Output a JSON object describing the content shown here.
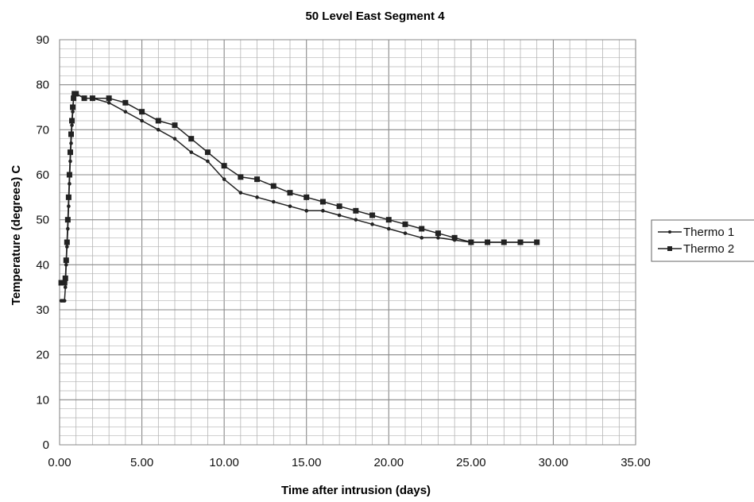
{
  "chart_data": {
    "type": "line",
    "title": "50 Level East Segment 4",
    "xlabel": "Time after intrusion (days)",
    "ylabel": "Temperature (degrees) C",
    "xlim": [
      0,
      35
    ],
    "ylim": [
      0,
      90
    ],
    "x_ticks": [
      "0.00",
      "5.00",
      "10.00",
      "15.00",
      "20.00",
      "25.00",
      "30.00",
      "35.00"
    ],
    "y_ticks": [
      "0",
      "10",
      "20",
      "30",
      "40",
      "50",
      "60",
      "70",
      "80",
      "90"
    ],
    "grid": true,
    "legend_position": "right",
    "series": [
      {
        "name": "Thermo 1",
        "marker": "small-dot",
        "color": "#222222",
        "x": [
          0.1,
          0.2,
          0.3,
          0.35,
          0.4,
          0.45,
          0.5,
          0.55,
          0.6,
          0.65,
          0.7,
          0.75,
          0.8,
          0.85,
          0.9,
          1.0,
          1.5,
          2.0,
          3.0,
          4.0,
          5.0,
          6.0,
          7.0,
          8.0,
          9.0,
          10.0,
          11.0,
          12.0,
          13.0,
          14.0,
          15.0,
          16.0,
          17.0,
          18.0,
          19.0,
          20.0,
          21.0,
          22.0,
          23.0,
          24.0,
          25.0,
          26.0,
          27.0,
          28.0,
          29.0
        ],
        "values": [
          32,
          32,
          32,
          35,
          40,
          44,
          48,
          53,
          58,
          63,
          67,
          71,
          74,
          77,
          78,
          78,
          77,
          77,
          76,
          74,
          72,
          70,
          68,
          65,
          63,
          59,
          56,
          55,
          54,
          53,
          52,
          52,
          51,
          50,
          49,
          48,
          47,
          46,
          46,
          45.5,
          45,
          45,
          45,
          45,
          45
        ]
      },
      {
        "name": "Thermo 2",
        "marker": "square",
        "color": "#222222",
        "x": [
          0.1,
          0.2,
          0.3,
          0.35,
          0.4,
          0.45,
          0.5,
          0.55,
          0.6,
          0.65,
          0.7,
          0.75,
          0.8,
          0.85,
          0.9,
          1.0,
          1.5,
          2.0,
          3.0,
          4.0,
          5.0,
          6.0,
          7.0,
          8.0,
          9.0,
          10.0,
          11.0,
          12.0,
          13.0,
          14.0,
          15.0,
          16.0,
          17.0,
          18.0,
          19.0,
          20.0,
          21.0,
          22.0,
          23.0,
          24.0,
          25.0,
          26.0,
          27.0,
          28.0,
          29.0
        ],
        "values": [
          36,
          36,
          36,
          37,
          41,
          45,
          50,
          55,
          60,
          65,
          69,
          72,
          75,
          77,
          78,
          78,
          77,
          77,
          77,
          76,
          74,
          72,
          71,
          68,
          65,
          62,
          59.5,
          59,
          57.5,
          56,
          55,
          54,
          53,
          52,
          51,
          50,
          49,
          48,
          47,
          46,
          45,
          45,
          45,
          45,
          45
        ]
      }
    ]
  }
}
